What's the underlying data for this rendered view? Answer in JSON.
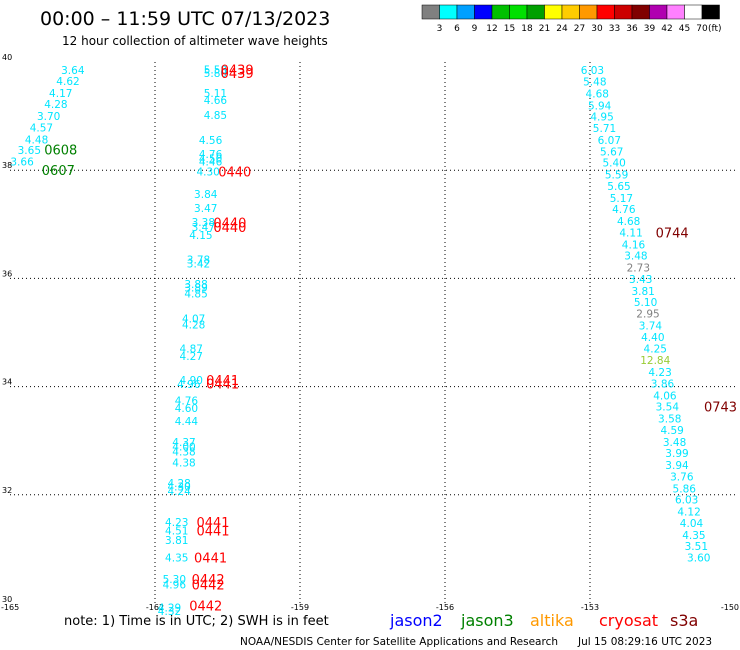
{
  "header": {
    "title": "00:00 – 11:59 UTC 07/13/2023",
    "subtitle": "12 hour collection of altimeter wave heights"
  },
  "scale": {
    "labels": [
      "3",
      "6",
      "9",
      "12",
      "15",
      "18",
      "21",
      "24",
      "27",
      "30",
      "33",
      "36",
      "39",
      "42",
      "45",
      "70"
    ],
    "unit": "(ft)",
    "colors": [
      "#808080",
      "#00ffff",
      "#00a0ff",
      "#0000ff",
      "#00c000",
      "#00e000",
      "#00a000",
      "#ffff00",
      "#ffcc00",
      "#ff9900",
      "#ff0000",
      "#cc0000",
      "#800000",
      "#b000b0",
      "#ff80ff",
      "#ffffff",
      "#000000"
    ]
  },
  "footer": {
    "note": "note:  1) Time is in UTC;  2) SWH is in feet",
    "satellites": [
      {
        "name": "jason2",
        "color": "#0000ff"
      },
      {
        "name": "jason3",
        "color": "#008000"
      },
      {
        "name": "altika",
        "color": "#ff9900"
      },
      {
        "name": "cryosat",
        "color": "#ff0000"
      },
      {
        "name": "s3a",
        "color": "#800000"
      }
    ],
    "credit": "NOAA/NESDIS Center for Satellite Applications and Research",
    "timestamp": "Jul 15 08:29:16 UTC 2023"
  },
  "chart_data": {
    "type": "scatter",
    "title": "00:00 – 11:59 UTC 07/13/2023",
    "xlim": [
      -165,
      -150
    ],
    "ylim": [
      30,
      40
    ],
    "x_ticks": [
      "-165",
      "-162",
      "-159",
      "-156",
      "-153",
      "-150"
    ],
    "x_tick_values": [
      -165,
      -162,
      -159,
      -156,
      -153,
      -150
    ],
    "y_ticks": [
      "30",
      "32",
      "34",
      "36",
      "38",
      "40"
    ],
    "y_tick_values": [
      30,
      32,
      34,
      36,
      38,
      40
    ],
    "grid": true,
    "wave_heights": [
      {
        "lon": -163.7,
        "lat": 39.85,
        "text": "3.64",
        "color": "#00e5ff"
      },
      {
        "lon": -163.8,
        "lat": 39.65,
        "text": "4.62",
        "color": "#00e5ff"
      },
      {
        "lon": -163.95,
        "lat": 39.43,
        "text": "4.17",
        "color": "#00e5ff"
      },
      {
        "lon": -164.05,
        "lat": 39.22,
        "text": "4.28",
        "color": "#00e5ff"
      },
      {
        "lon": -164.2,
        "lat": 39.0,
        "text": "3.70",
        "color": "#00e5ff"
      },
      {
        "lon": -164.35,
        "lat": 38.79,
        "text": "4.57",
        "color": "#00e5ff"
      },
      {
        "lon": -164.45,
        "lat": 38.57,
        "text": "4.48",
        "color": "#00e5ff"
      },
      {
        "lon": -164.6,
        "lat": 38.37,
        "text": "3.65",
        "color": "#00e5ff"
      },
      {
        "lon": -164.75,
        "lat": 38.16,
        "text": "3.66",
        "color": "#00e5ff"
      },
      {
        "lon": -160.75,
        "lat": 39.86,
        "text": "5.58",
        "color": "#00e5ff"
      },
      {
        "lon": -160.75,
        "lat": 39.8,
        "text": "5.80",
        "color": "#00e5ff"
      },
      {
        "lon": -160.75,
        "lat": 39.43,
        "text": "5.11",
        "color": "#00e5ff"
      },
      {
        "lon": -160.75,
        "lat": 39.3,
        "text": "4.66",
        "color": "#00e5ff"
      },
      {
        "lon": -160.75,
        "lat": 39.02,
        "text": "4.85",
        "color": "#00e5ff"
      },
      {
        "lon": -160.85,
        "lat": 38.56,
        "text": "4.56",
        "color": "#00e5ff"
      },
      {
        "lon": -160.85,
        "lat": 38.3,
        "text": "4.76",
        "color": "#00e5ff"
      },
      {
        "lon": -160.85,
        "lat": 38.22,
        "text": "4.50",
        "color": "#00e5ff"
      },
      {
        "lon": -160.85,
        "lat": 38.16,
        "text": "4.46",
        "color": "#00e5ff"
      },
      {
        "lon": -160.9,
        "lat": 37.98,
        "text": "4.30",
        "color": "#00e5ff"
      },
      {
        "lon": -160.95,
        "lat": 37.56,
        "text": "3.84",
        "color": "#00e5ff"
      },
      {
        "lon": -160.95,
        "lat": 37.3,
        "text": "3.47",
        "color": "#00e5ff"
      },
      {
        "lon": -161.0,
        "lat": 37.04,
        "text": "3.38",
        "color": "#00e5ff"
      },
      {
        "lon": -161.0,
        "lat": 36.95,
        "text": "3.47",
        "color": "#00e5ff"
      },
      {
        "lon": -161.05,
        "lat": 36.8,
        "text": "4.15",
        "color": "#00e5ff"
      },
      {
        "lon": -161.1,
        "lat": 36.35,
        "text": "3.78",
        "color": "#00e5ff"
      },
      {
        "lon": -161.1,
        "lat": 36.28,
        "text": "3.42",
        "color": "#00e5ff"
      },
      {
        "lon": -161.15,
        "lat": 35.9,
        "text": "3.88",
        "color": "#00e5ff"
      },
      {
        "lon": -161.15,
        "lat": 35.83,
        "text": "3.89",
        "color": "#00e5ff"
      },
      {
        "lon": -161.15,
        "lat": 35.72,
        "text": "4.85",
        "color": "#00e5ff"
      },
      {
        "lon": -161.2,
        "lat": 35.26,
        "text": "4.07",
        "color": "#00e5ff"
      },
      {
        "lon": -161.2,
        "lat": 35.15,
        "text": "4.28",
        "color": "#00e5ff"
      },
      {
        "lon": -161.25,
        "lat": 34.7,
        "text": "4.87",
        "color": "#00e5ff"
      },
      {
        "lon": -161.25,
        "lat": 34.57,
        "text": "4.27",
        "color": "#00e5ff"
      },
      {
        "lon": -161.25,
        "lat": 34.12,
        "text": "4.90",
        "color": "#00e5ff"
      },
      {
        "lon": -161.3,
        "lat": 34.05,
        "text": "4.96",
        "color": "#00e5ff"
      },
      {
        "lon": -161.35,
        "lat": 33.74,
        "text": "4.76",
        "color": "#00e5ff"
      },
      {
        "lon": -161.35,
        "lat": 33.6,
        "text": "4.60",
        "color": "#00e5ff"
      },
      {
        "lon": -161.35,
        "lat": 33.36,
        "text": "4.44",
        "color": "#00e5ff"
      },
      {
        "lon": -161.4,
        "lat": 32.98,
        "text": "4.37",
        "color": "#00e5ff"
      },
      {
        "lon": -161.4,
        "lat": 32.89,
        "text": "4.00",
        "color": "#00e5ff"
      },
      {
        "lon": -161.4,
        "lat": 32.8,
        "text": "4.38",
        "color": "#00e5ff"
      },
      {
        "lon": -161.4,
        "lat": 32.6,
        "text": "4.38",
        "color": "#00e5ff"
      },
      {
        "lon": -161.5,
        "lat": 32.22,
        "text": "4.28",
        "color": "#00e5ff"
      },
      {
        "lon": -161.5,
        "lat": 32.15,
        "text": "4.30",
        "color": "#00e5ff"
      },
      {
        "lon": -161.5,
        "lat": 32.07,
        "text": "4.24",
        "color": "#00e5ff"
      },
      {
        "lon": -161.55,
        "lat": 31.5,
        "text": "4.23",
        "color": "#00e5ff"
      },
      {
        "lon": -161.55,
        "lat": 31.34,
        "text": "4.51",
        "color": "#00e5ff"
      },
      {
        "lon": -161.55,
        "lat": 31.16,
        "text": "3.81",
        "color": "#00e5ff"
      },
      {
        "lon": -161.55,
        "lat": 30.84,
        "text": "4.35",
        "color": "#00e5ff"
      },
      {
        "lon": -161.6,
        "lat": 30.44,
        "text": "5.30",
        "color": "#00e5ff"
      },
      {
        "lon": -161.6,
        "lat": 30.34,
        "text": "4.96",
        "color": "#00e5ff"
      },
      {
        "lon": -161.7,
        "lat": 29.92,
        "text": "4.29",
        "color": "#00e5ff"
      },
      {
        "lon": -161.7,
        "lat": 29.85,
        "text": "4.32",
        "color": "#00e5ff"
      },
      {
        "lon": -152.95,
        "lat": 39.85,
        "text": "6.03",
        "color": "#00e5ff"
      },
      {
        "lon": -152.9,
        "lat": 39.64,
        "text": "5.48",
        "color": "#00e5ff"
      },
      {
        "lon": -152.85,
        "lat": 39.42,
        "text": "4.68",
        "color": "#00e5ff"
      },
      {
        "lon": -152.8,
        "lat": 39.2,
        "text": "5.94",
        "color": "#00e5ff"
      },
      {
        "lon": -152.75,
        "lat": 38.99,
        "text": "4.95",
        "color": "#00e5ff"
      },
      {
        "lon": -152.7,
        "lat": 38.78,
        "text": "5.71",
        "color": "#00e5ff"
      },
      {
        "lon": -152.6,
        "lat": 38.56,
        "text": "6.07",
        "color": "#00e5ff"
      },
      {
        "lon": -152.55,
        "lat": 38.35,
        "text": "5.67",
        "color": "#00e5ff"
      },
      {
        "lon": -152.5,
        "lat": 38.14,
        "text": "5.40",
        "color": "#00e5ff"
      },
      {
        "lon": -152.45,
        "lat": 37.92,
        "text": "5.59",
        "color": "#00e5ff"
      },
      {
        "lon": -152.4,
        "lat": 37.71,
        "text": "5.65",
        "color": "#00e5ff"
      },
      {
        "lon": -152.35,
        "lat": 37.49,
        "text": "5.17",
        "color": "#00e5ff"
      },
      {
        "lon": -152.3,
        "lat": 37.28,
        "text": "4.76",
        "color": "#00e5ff"
      },
      {
        "lon": -152.2,
        "lat": 37.06,
        "text": "4.68",
        "color": "#00e5ff"
      },
      {
        "lon": -152.15,
        "lat": 36.85,
        "text": "4.11",
        "color": "#00e5ff"
      },
      {
        "lon": -152.1,
        "lat": 36.63,
        "text": "4.16",
        "color": "#00e5ff"
      },
      {
        "lon": -152.05,
        "lat": 36.42,
        "text": "3.48",
        "color": "#00e5ff"
      },
      {
        "lon": -152.0,
        "lat": 36.2,
        "text": "2.73",
        "color": "#808080"
      },
      {
        "lon": -151.95,
        "lat": 35.99,
        "text": "3.43",
        "color": "#00e5ff"
      },
      {
        "lon": -151.9,
        "lat": 35.77,
        "text": "3.81",
        "color": "#00e5ff"
      },
      {
        "lon": -151.85,
        "lat": 35.56,
        "text": "5.10",
        "color": "#00e5ff"
      },
      {
        "lon": -151.8,
        "lat": 35.35,
        "text": "2.95",
        "color": "#808080"
      },
      {
        "lon": -151.75,
        "lat": 35.13,
        "text": "3.74",
        "color": "#00e5ff"
      },
      {
        "lon": -151.7,
        "lat": 34.92,
        "text": "4.40",
        "color": "#00e5ff"
      },
      {
        "lon": -151.65,
        "lat": 34.7,
        "text": "4.25",
        "color": "#00e5ff"
      },
      {
        "lon": -151.65,
        "lat": 34.49,
        "text": "12.84",
        "color": "#99cc33"
      },
      {
        "lon": -151.55,
        "lat": 34.27,
        "text": "4.23",
        "color": "#00e5ff"
      },
      {
        "lon": -151.5,
        "lat": 34.06,
        "text": "3.86",
        "color": "#00e5ff"
      },
      {
        "lon": -151.45,
        "lat": 33.84,
        "text": "4.06",
        "color": "#00e5ff"
      },
      {
        "lon": -151.4,
        "lat": 33.63,
        "text": "3.54",
        "color": "#00e5ff"
      },
      {
        "lon": -151.35,
        "lat": 33.41,
        "text": "3.58",
        "color": "#00e5ff"
      },
      {
        "lon": -151.3,
        "lat": 33.2,
        "text": "4.59",
        "color": "#00e5ff"
      },
      {
        "lon": -151.25,
        "lat": 32.98,
        "text": "3.48",
        "color": "#00e5ff"
      },
      {
        "lon": -151.2,
        "lat": 32.77,
        "text": "3.99",
        "color": "#00e5ff"
      },
      {
        "lon": -151.2,
        "lat": 32.55,
        "text": "3.94",
        "color": "#00e5ff"
      },
      {
        "lon": -151.1,
        "lat": 32.34,
        "text": "3.76",
        "color": "#00e5ff"
      },
      {
        "lon": -151.05,
        "lat": 32.12,
        "text": "5.86",
        "color": "#00e5ff"
      },
      {
        "lon": -151.0,
        "lat": 31.91,
        "text": "6.03",
        "color": "#00e5ff"
      },
      {
        "lon": -150.95,
        "lat": 31.69,
        "text": "4.12",
        "color": "#00e5ff"
      },
      {
        "lon": -150.9,
        "lat": 31.48,
        "text": "4.04",
        "color": "#00e5ff"
      },
      {
        "lon": -150.85,
        "lat": 31.26,
        "text": "4.35",
        "color": "#00e5ff"
      },
      {
        "lon": -150.8,
        "lat": 31.05,
        "text": "3.51",
        "color": "#00e5ff"
      },
      {
        "lon": -150.75,
        "lat": 30.84,
        "text": "3.60",
        "color": "#00e5ff"
      }
    ],
    "pass_times": [
      {
        "lon": -163.95,
        "lat": 38.38,
        "text": "0608",
        "color": "#008000"
      },
      {
        "lon": -164.0,
        "lat": 38.0,
        "text": "0607",
        "color": "#008000"
      },
      {
        "lon": -160.3,
        "lat": 39.86,
        "text": "0439",
        "color": "#ff0000"
      },
      {
        "lon": -160.3,
        "lat": 39.8,
        "text": "0439",
        "color": "#ff0000"
      },
      {
        "lon": -160.35,
        "lat": 37.98,
        "text": "0440",
        "color": "#ff0000"
      },
      {
        "lon": -160.45,
        "lat": 37.03,
        "text": "0440",
        "color": "#ff0000"
      },
      {
        "lon": -160.45,
        "lat": 36.95,
        "text": "0440",
        "color": "#ff0000"
      },
      {
        "lon": -160.6,
        "lat": 34.12,
        "text": "0441",
        "color": "#ff0000"
      },
      {
        "lon": -160.6,
        "lat": 34.06,
        "text": "0441",
        "color": "#ff0000"
      },
      {
        "lon": -160.8,
        "lat": 31.5,
        "text": "0441",
        "color": "#ff0000"
      },
      {
        "lon": -160.8,
        "lat": 31.34,
        "text": "0441",
        "color": "#ff0000"
      },
      {
        "lon": -160.85,
        "lat": 30.84,
        "text": "0441",
        "color": "#ff0000"
      },
      {
        "lon": -160.9,
        "lat": 30.44,
        "text": "0442",
        "color": "#ff0000"
      },
      {
        "lon": -160.9,
        "lat": 30.34,
        "text": "0442",
        "color": "#ff0000"
      },
      {
        "lon": -160.95,
        "lat": 29.95,
        "text": "0442",
        "color": "#ff0000"
      },
      {
        "lon": -151.3,
        "lat": 36.85,
        "text": "0744",
        "color": "#800000"
      },
      {
        "lon": -150.3,
        "lat": 33.63,
        "text": "0743",
        "color": "#800000"
      }
    ]
  }
}
